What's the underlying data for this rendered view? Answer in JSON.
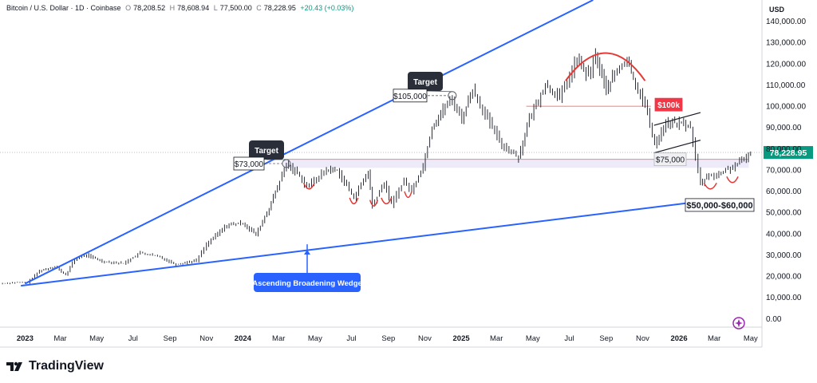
{
  "header": {
    "symbol": "Bitcoin / U.S. Dollar · 1D · Coinbase",
    "open_label": "O",
    "open": "78,208.52",
    "high_label": "H",
    "high": "78,608.94",
    "low_label": "L",
    "low": "77,500.00",
    "close_label": "C",
    "close": "78,228.95",
    "change": "+20.43 (+0.03%)"
  },
  "currency": "USD",
  "brand": "TradingView",
  "colors": {
    "trendline": "#2962ff",
    "candle": "#131722",
    "arc": "#e53935",
    "zone_fill": "#e8e6f7",
    "price_badge": "#089981",
    "label_dark": "#2a2e39",
    "label_red": "#f23645"
  },
  "chart_data": {
    "type": "line",
    "title": "Bitcoin / U.S. Dollar · 1D · Coinbase",
    "ylim": [
      -4000,
      150000
    ],
    "xlim": [
      "2022-11-20",
      "2026-05-20"
    ],
    "y_ticks": [
      0,
      10000,
      20000,
      30000,
      40000,
      50000,
      60000,
      70000,
      80000,
      90000,
      100000,
      110000,
      120000,
      130000,
      140000
    ],
    "y_tick_labels": [
      "0.00",
      "10,000.00",
      "20,000.00",
      "30,000.00",
      "40,000.00",
      "50,000.00",
      "60,000.00",
      "70,000.00",
      "80,000.00",
      "90,000.00",
      "100,000.00",
      "110,000.00",
      "120,000.00",
      "130,000.00",
      "140,000.00"
    ],
    "x_ticks": [
      "2023-01-01",
      "2023-03-01",
      "2023-05-01",
      "2023-07-01",
      "2023-09-01",
      "2023-11-01",
      "2024-01-01",
      "2024-03-01",
      "2024-05-01",
      "2024-07-01",
      "2024-09-01",
      "2024-11-01",
      "2025-01-01",
      "2025-03-01",
      "2025-05-01",
      "2025-07-01",
      "2025-09-01",
      "2025-11-01",
      "2026-01-01",
      "2026-03-01",
      "2026-05-01"
    ],
    "x_tick_labels": [
      "2023",
      "Mar",
      "May",
      "Jul",
      "Sep",
      "Nov",
      "2024",
      "Mar",
      "May",
      "Jul",
      "Sep",
      "Nov",
      "2025",
      "Mar",
      "May",
      "Jul",
      "Sep",
      "Nov",
      "2026",
      "Mar",
      "May"
    ],
    "grid": false,
    "series": [
      {
        "x": [
          "2022-11-20",
          "2022-12-15",
          "2023-01-05",
          "2023-01-25",
          "2023-02-20",
          "2023-03-10",
          "2023-03-25",
          "2023-04-14",
          "2023-05-10",
          "2023-06-15",
          "2023-07-13",
          "2023-08-15",
          "2023-09-11",
          "2023-10-15",
          "2023-11-01",
          "2023-12-05",
          "2024-01-01",
          "2024-01-23",
          "2024-02-14",
          "2024-02-28",
          "2024-03-14",
          "2024-04-01",
          "2024-04-17",
          "2024-05-20",
          "2024-06-07",
          "2024-07-05",
          "2024-07-29",
          "2024-08-05",
          "2024-08-25",
          "2024-09-06",
          "2024-09-27",
          "2024-10-10",
          "2024-10-29",
          "2024-11-13",
          "2024-12-05",
          "2024-12-17",
          "2025-01-02",
          "2025-01-20",
          "2025-02-10",
          "2025-03-10",
          "2025-04-07",
          "2025-04-25",
          "2025-05-22",
          "2025-06-15",
          "2025-07-14",
          "2025-08-02",
          "2025-08-14",
          "2025-09-01",
          "2025-09-15",
          "2025-10-06",
          "2025-10-20",
          "2025-11-05",
          "2025-11-21",
          "2025-12-10",
          "2026-01-05",
          "2026-01-20",
          "2026-02-06",
          "2026-02-20",
          "2026-03-05",
          "2026-03-20",
          "2026-04-05",
          "2026-04-20",
          "2026-05-01"
        ],
        "values": [
          16500,
          17000,
          17000,
          22500,
          24500,
          20500,
          28000,
          30000,
          27000,
          26000,
          31000,
          29000,
          25500,
          27500,
          35000,
          44000,
          45000,
          39500,
          52000,
          62000,
          72500,
          69000,
          62000,
          70000,
          70000,
          57000,
          69000,
          53000,
          64000,
          54000,
          65000,
          60000,
          72000,
          90000,
          100000,
          103000,
          94000,
          108000,
          96000,
          82000,
          76000,
          94000,
          110000,
          104000,
          122000,
          114000,
          124000,
          108000,
          115000,
          122000,
          110000,
          101000,
          82000,
          92000,
          92000,
          90000,
          63000,
          68000,
          67000,
          70000,
          72000,
          75000,
          78229
        ]
      }
    ],
    "annotations": [
      {
        "text": "Target",
        "x": "2024-03-14",
        "y": 73000
      },
      {
        "text": "Target",
        "x": "2024-12-17",
        "y": 105000
      },
      {
        "text": "$73,000",
        "y": 73000
      },
      {
        "text": "$105,000",
        "y": 105000
      },
      {
        "text": "$75,000",
        "y": 75000
      },
      {
        "text": "$100k",
        "y": 100000
      },
      {
        "text": "$50,000-$60,000",
        "y": 55000
      },
      {
        "text": "Ascending Broadening Wedge"
      }
    ],
    "last_price": 78228.95,
    "last_price_label": "78,228.95"
  }
}
